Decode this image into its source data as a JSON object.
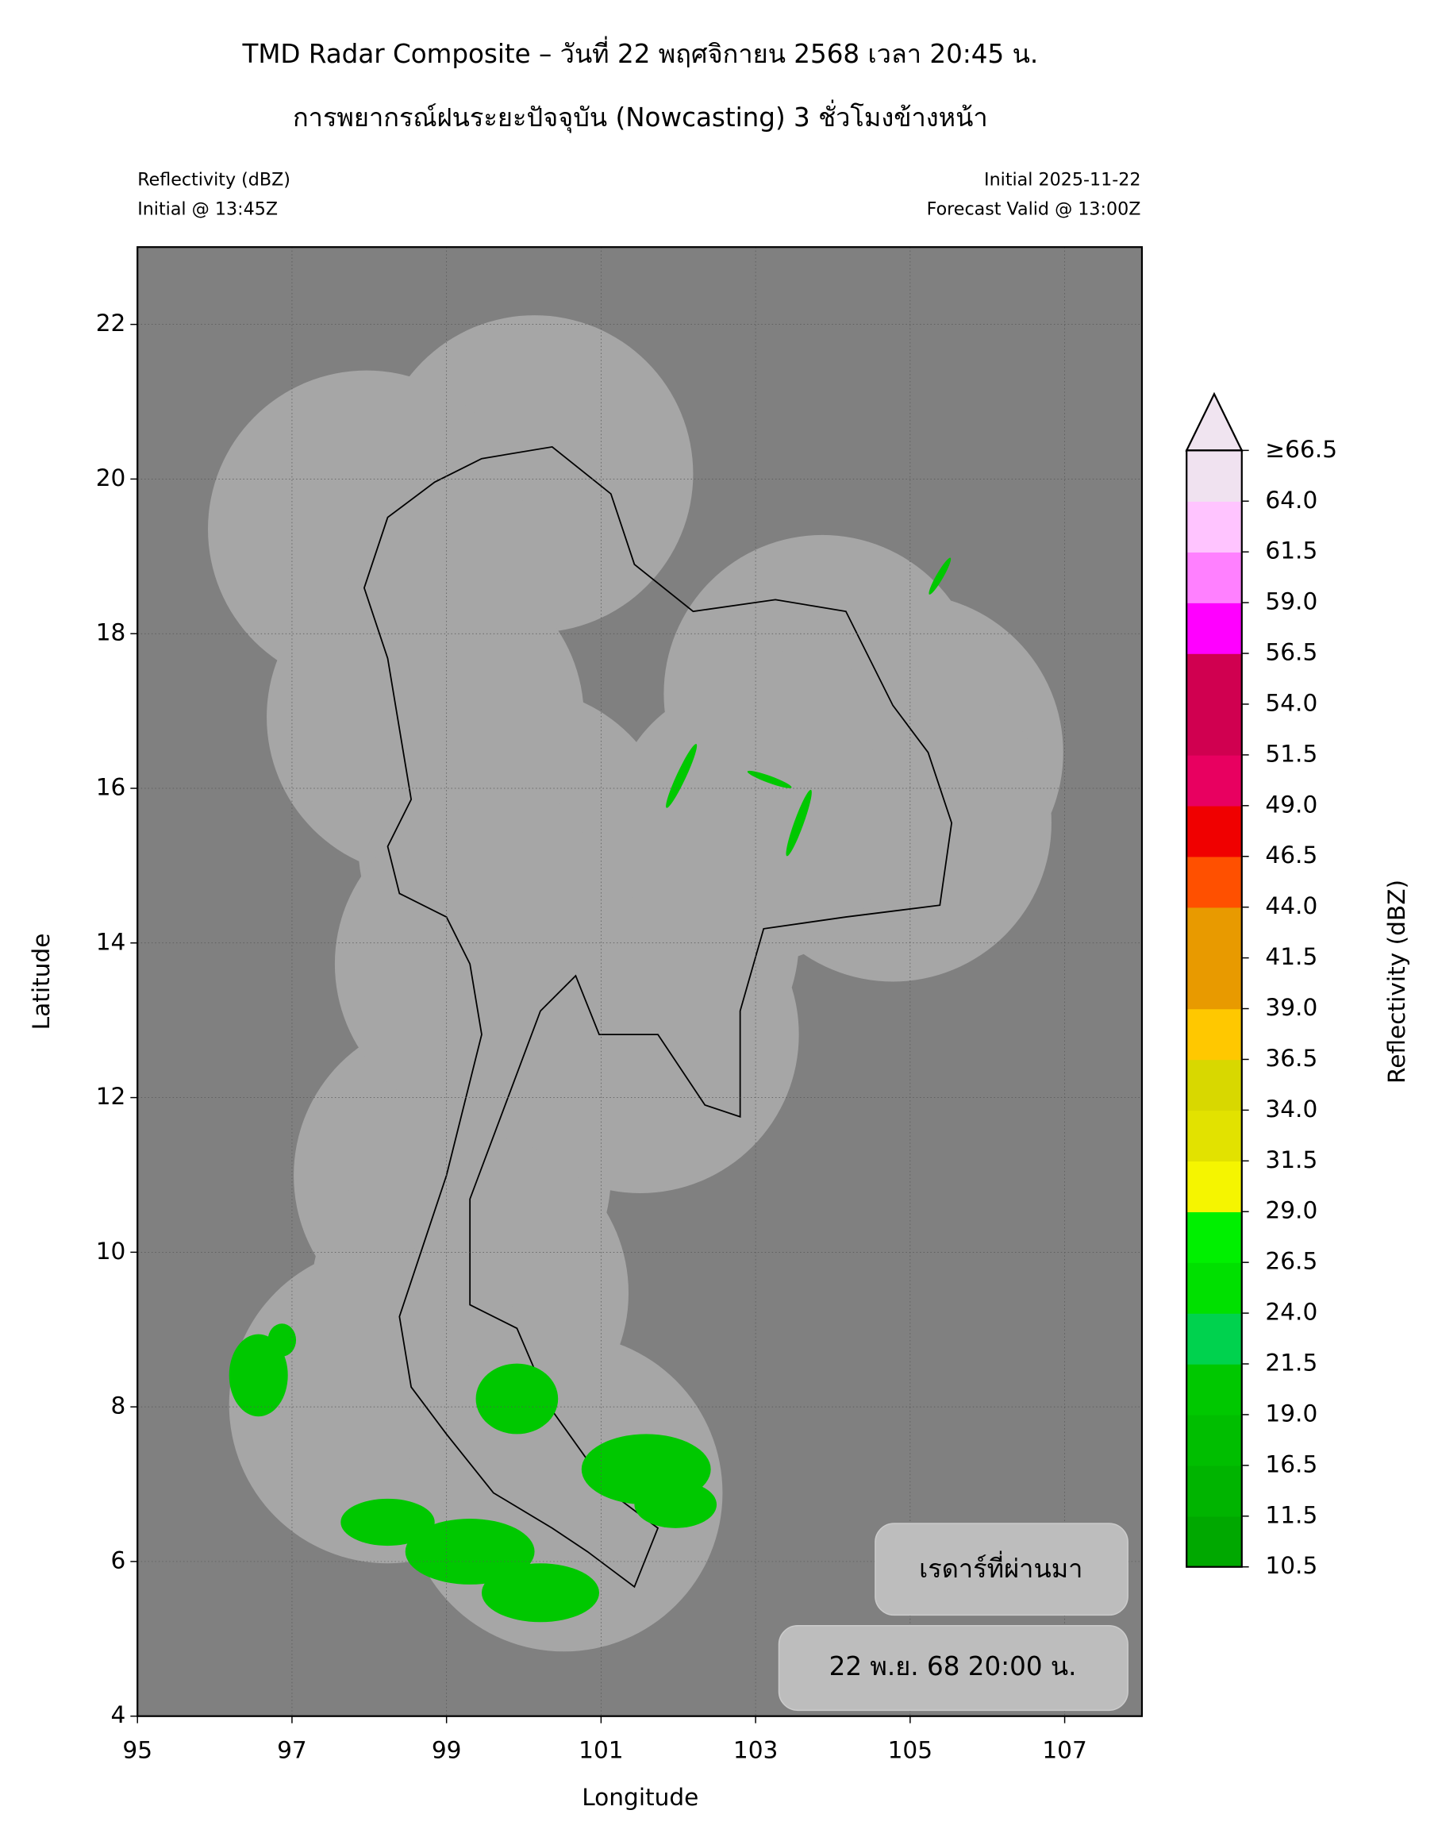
{
  "header": {
    "title": [
      "TMD Radar Composite – วันที่ 22 พฤศจิกายน 2568 เวลา 20:45 น.",
      "การพยากรณ์ฝนระยะปัจจุบัน (Nowcasting) 3 ชั่วโมงข้างหน้า"
    ],
    "left": [
      "Reflectivity (dBZ)",
      "Initial @ 13:45Z"
    ],
    "right": [
      "Initial 2025-11-22",
      "Forecast Valid @ 13:00Z"
    ]
  },
  "map": {
    "xlabel": "Longitude",
    "ylabel": "Latitude",
    "xlim": [
      95,
      108
    ],
    "ylim": [
      4,
      23
    ],
    "xticks": [
      95,
      97,
      99,
      101,
      103,
      105,
      107
    ],
    "yticks": [
      4,
      6,
      8,
      10,
      12,
      14,
      16,
      18,
      20,
      22
    ],
    "grid": true,
    "background": "#808080",
    "coverage_color": "#a6a6a6",
    "echo_color": "#00c800"
  },
  "colorbar": {
    "label": "Reflectivity (dBZ)",
    "ticks": [
      10.5,
      11.5,
      16.5,
      {
        "value": 19.0,
        "label": "19.0"
      },
      21.5,
      {
        "value": 24.0,
        "label": "24.0"
      },
      26.5,
      {
        "value": 29.0,
        "label": "29.0"
      },
      31.5,
      {
        "value": 34.0,
        "label": "34.0"
      },
      36.5,
      {
        "value": 39.0,
        "label": "39.0"
      },
      41.5,
      {
        "value": 44.0,
        "label": "44.0"
      },
      46.5,
      {
        "value": 49.0,
        "label": "49.0"
      },
      51.5,
      {
        "value": 54.0,
        "label": "54.0"
      },
      56.5,
      {
        "value": 59.0,
        "label": "59.0"
      },
      61.5,
      {
        "value": 64.0,
        "label": "64.0"
      },
      {
        "value": 66.5,
        "label": "≥66.5"
      }
    ],
    "colors": [
      "#00a800",
      "#00b400",
      "#00be00",
      "#00c800",
      "#00d24e",
      "#00e000",
      "#00f000",
      "#f5f500",
      "#e2e200",
      "#d8d800",
      "#ffc800",
      "#e89a00",
      "#e89a00",
      "#ff5000",
      "#f00000",
      "#e80060",
      "#d00050",
      "#d00050",
      "#ff00ff",
      "#ff80ff",
      "#ffc4ff",
      "#f0e2f0"
    ],
    "extend_color": "#f0e4f0"
  },
  "overlay": {
    "label": "เรดาร์ที่ผ่านมา",
    "time": "22 พ.ย. 68 20:00 น."
  }
}
